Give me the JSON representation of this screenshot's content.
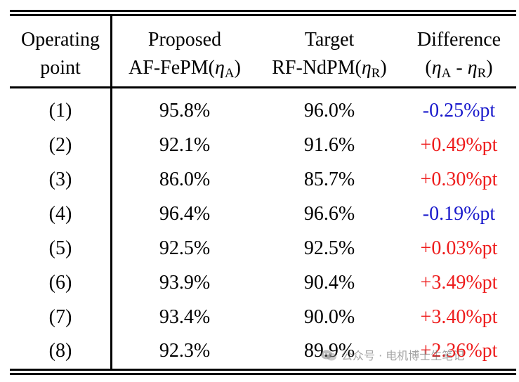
{
  "header": {
    "col0_line1": "Operating",
    "col0_line2": "point",
    "col1_line1": "Proposed",
    "col1_line2_prefix": "AF-FePM(",
    "col1_eta": "η",
    "col1_sub": "A",
    "col1_suffix": ")",
    "col2_line1": "Target",
    "col2_line2_prefix": "RF-NdPM(",
    "col2_eta": "η",
    "col2_sub": "R",
    "col2_suffix": ")",
    "col3_line1": "Difference",
    "col3_open": "(",
    "col3_eta1": "η",
    "col3_sub1": "A",
    "col3_minus": " - ",
    "col3_eta2": "η",
    "col3_sub2": "R",
    "col3_close": ")"
  },
  "rows": [
    {
      "point": "(1)",
      "proposed": "95.8%",
      "target": "96.0%",
      "diff": "-0.25%pt",
      "sign": "neg"
    },
    {
      "point": "(2)",
      "proposed": "92.1%",
      "target": "91.6%",
      "diff": "+0.49%pt",
      "sign": "pos"
    },
    {
      "point": "(3)",
      "proposed": "86.0%",
      "target": "85.7%",
      "diff": "+0.30%pt",
      "sign": "pos"
    },
    {
      "point": "(4)",
      "proposed": "96.4%",
      "target": "96.6%",
      "diff": "-0.19%pt",
      "sign": "neg"
    },
    {
      "point": "(5)",
      "proposed": "92.5%",
      "target": "92.5%",
      "diff": "+0.03%pt",
      "sign": "pos"
    },
    {
      "point": "(6)",
      "proposed": "93.9%",
      "target": "90.4%",
      "diff": "+3.49%pt",
      "sign": "pos"
    },
    {
      "point": "(7)",
      "proposed": "93.4%",
      "target": "90.0%",
      "diff": "+3.40%pt",
      "sign": "pos"
    },
    {
      "point": "(8)",
      "proposed": "92.3%",
      "target": "89.9%",
      "diff": "+2.36%pt",
      "sign": "pos"
    }
  ],
  "colors": {
    "negative": "#1a1acc",
    "positive": "#ee1c1c"
  },
  "watermark": {
    "text": "公众号 · 电机博士生笔记",
    "icon": "wechat-icon"
  }
}
